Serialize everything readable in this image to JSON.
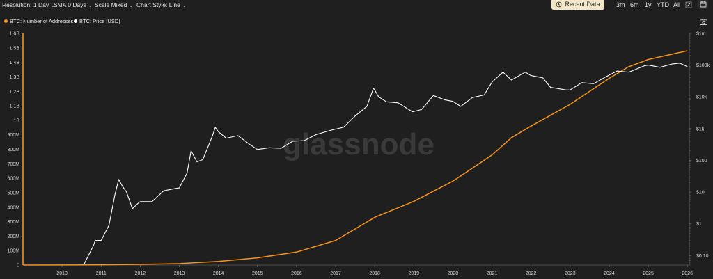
{
  "toolbar": {
    "resolution": "Resolution: 1 Day",
    "sma": "SMA 0 Days",
    "scale": "Scale Mixed",
    "chart_style": "Chart Style: Line",
    "recent_data": "Recent Data",
    "ranges": [
      "3m",
      "6m",
      "1y",
      "YTD",
      "All"
    ]
  },
  "watermark": "glassnode",
  "colors": {
    "addresses": "#f7931a",
    "price": "#ffffff",
    "background": "#1f1f1f",
    "accent": "#f4e7c8"
  },
  "icons": {
    "recent": "history-icon",
    "calendar": "calendar-icon",
    "camera": "camera-icon",
    "edit": "edit-icon"
  },
  "chart_data": {
    "type": "line",
    "left_axis": {
      "scale": "linear",
      "ticks": [
        0,
        100000000,
        200000000,
        300000000,
        400000000,
        500000000,
        600000000,
        700000000,
        800000000,
        900000000,
        1000000000,
        1100000000,
        1200000000,
        1300000000,
        1400000000,
        1500000000,
        1600000000
      ],
      "tick_labels": [
        "0",
        "100M",
        "200M",
        "300M",
        "400M",
        "500M",
        "600M",
        "700M",
        "800M",
        "900M",
        "1B",
        "1.1B",
        "1.2B",
        "1.3B",
        "1.4B",
        "1.5B",
        "1.6B"
      ],
      "range": [
        0,
        1600000000
      ]
    },
    "right_axis": {
      "scale": "log",
      "ticks": [
        0.1,
        1,
        10,
        100,
        1000,
        10000,
        100000,
        1000000
      ],
      "tick_labels": [
        "$0.10",
        "$1",
        "$10",
        "$100",
        "$1k",
        "$10k",
        "$100k",
        "$1m"
      ],
      "range": [
        0.05,
        1000000
      ]
    },
    "x_axis": {
      "range": [
        2009.0,
        2026.05
      ],
      "ticks": [
        2010,
        2011,
        2012,
        2013,
        2014,
        2015,
        2016,
        2017,
        2018,
        2019,
        2020,
        2021,
        2022,
        2023,
        2024,
        2025,
        2026
      ],
      "tick_labels": [
        "2010",
        "2011",
        "2012",
        "2013",
        "2014",
        "2015",
        "2016",
        "2017",
        "2018",
        "2019",
        "2020",
        "2021",
        "2022",
        "2023",
        "2024",
        "2025",
        "2026"
      ]
    },
    "series": [
      {
        "name": "BTC: Number of Addresses",
        "axis": "left",
        "x": [
          2009.0,
          2010.0,
          2011.0,
          2012.0,
          2013.0,
          2014.0,
          2015.0,
          2016.0,
          2017.0,
          2017.5,
          2018.0,
          2019.0,
          2020.0,
          2020.5,
          2021.0,
          2021.5,
          2022.0,
          2023.0,
          2024.0,
          2024.5,
          2025.0,
          2026.0
        ],
        "y": [
          0,
          300000,
          2000000,
          5000000,
          10000000,
          25000000,
          50000000,
          90000000,
          170000000,
          250000000,
          330000000,
          440000000,
          580000000,
          670000000,
          760000000,
          880000000,
          960000000,
          1110000000,
          1290000000,
          1370000000,
          1420000000,
          1480000000
        ]
      },
      {
        "name": "BTC: Price [USD]",
        "axis": "right",
        "x": [
          2010.55,
          2010.8,
          2010.85,
          2011.0,
          2011.2,
          2011.35,
          2011.45,
          2011.55,
          2011.65,
          2011.8,
          2011.95,
          2012.0,
          2012.3,
          2012.6,
          2012.9,
          2013.0,
          2013.2,
          2013.3,
          2013.45,
          2013.6,
          2013.85,
          2013.92,
          2014.0,
          2014.2,
          2014.5,
          2014.8,
          2015.0,
          2015.3,
          2015.6,
          2015.9,
          2016.2,
          2016.5,
          2016.9,
          2017.2,
          2017.5,
          2017.8,
          2017.97,
          2018.1,
          2018.3,
          2018.6,
          2018.9,
          2018.97,
          2019.2,
          2019.5,
          2019.8,
          2020.0,
          2020.2,
          2020.5,
          2020.8,
          2021.0,
          2021.28,
          2021.5,
          2021.85,
          2022.0,
          2022.3,
          2022.5,
          2022.9,
          2023.0,
          2023.3,
          2023.6,
          2023.9,
          2024.2,
          2024.5,
          2024.9,
          2025.0,
          2025.3,
          2025.6,
          2025.8,
          2026.0
        ],
        "y": [
          0.05,
          0.2,
          0.3,
          0.3,
          0.9,
          8,
          25,
          15,
          10,
          3,
          4.5,
          5,
          5,
          11,
          13,
          13.5,
          40,
          200,
          90,
          105,
          600,
          1100,
          800,
          500,
          600,
          320,
          220,
          250,
          240,
          400,
          420,
          650,
          900,
          1100,
          2500,
          5000,
          19000,
          10000,
          7000,
          6500,
          3800,
          3400,
          4000,
          11000,
          8000,
          7200,
          5000,
          9500,
          11500,
          29000,
          60000,
          34000,
          60000,
          47000,
          40000,
          20000,
          16500,
          16600,
          28000,
          26000,
          42000,
          65000,
          60000,
          95000,
          100000,
          85000,
          108000,
          115000,
          90000
        ]
      }
    ]
  }
}
